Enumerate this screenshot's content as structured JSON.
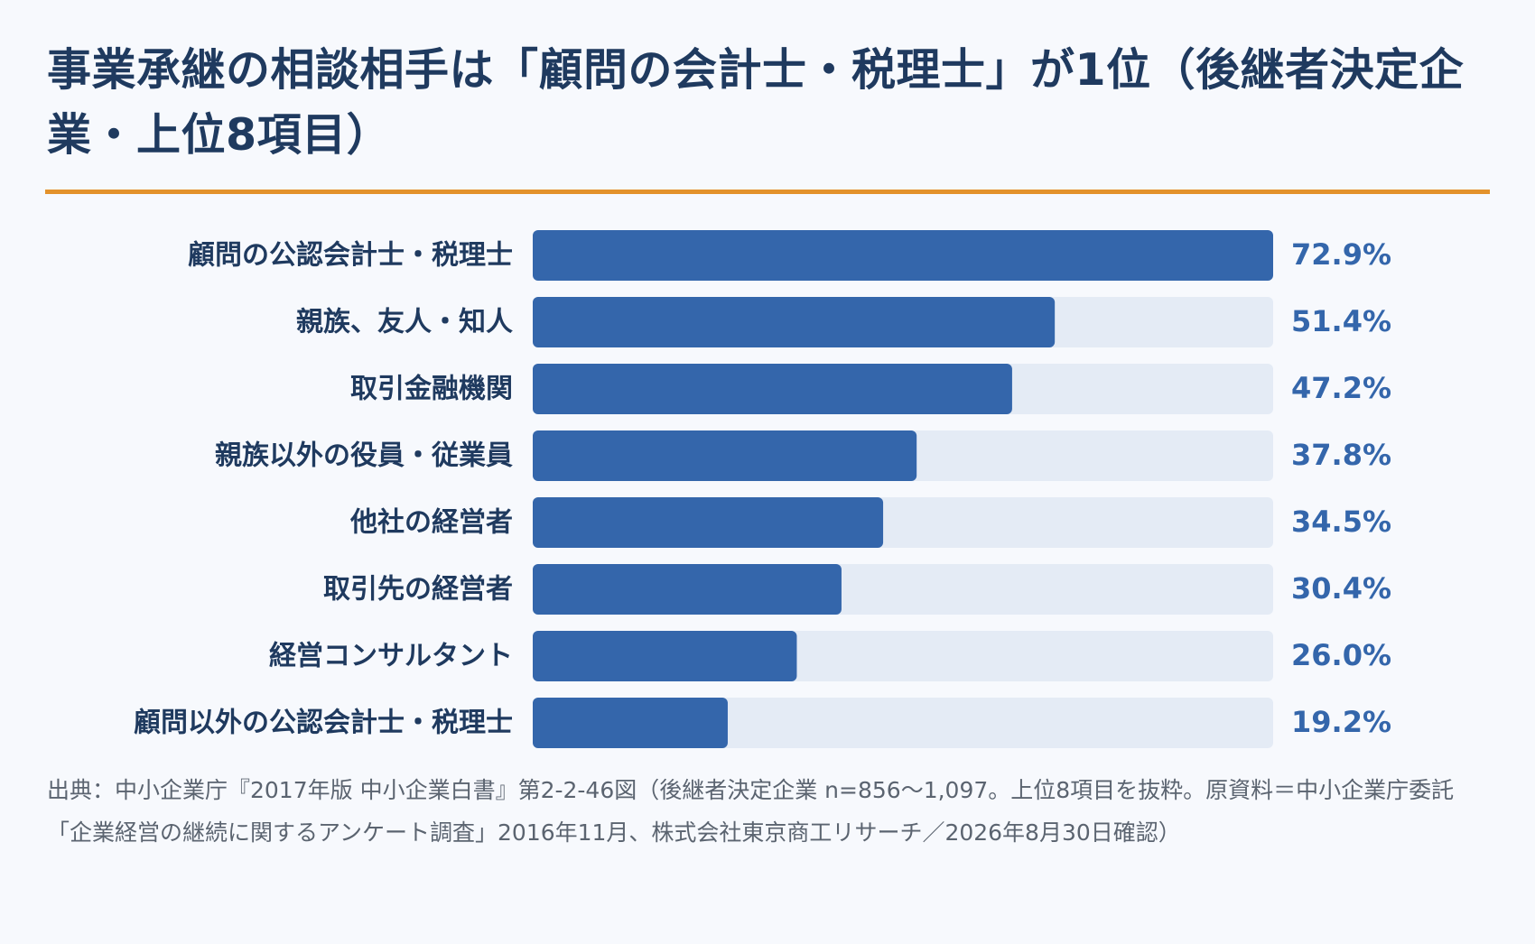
{
  "title": "事業承継の相談相手は「顧問の会計士・税理士」が1位（後継者決定企業・上位8項目）",
  "source": "出典：中小企業庁『2017年版 中小企業白書』第2-2-46図（後継者決定企業 n=856〜1,097。上位8項目を抜粋。原資料＝中小企業庁委託「企業経営の継続に関するアンケート調査」2016年11月、株式会社東京商工リサーチ／2026年8月30日確認）",
  "colors": {
    "bar": "#3466ab",
    "track": "#e4ebf5",
    "accent_rule": "#e3922c",
    "label": "#1f3a5f",
    "value": "#3466ab"
  },
  "chart_data": {
    "type": "bar",
    "orientation": "horizontal",
    "categories": [
      "顧問の公認会計士・税理士",
      "親族、友人・知人",
      "取引金融機関",
      "親族以外の役員・従業員",
      "他社の経営者",
      "取引先の経営者",
      "経営コンサルタント",
      "顧問以外の公認会計士・税理士"
    ],
    "values": [
      72.9,
      51.4,
      47.2,
      37.8,
      34.5,
      30.4,
      26.0,
      19.2
    ],
    "value_labels": [
      "72.9%",
      "51.4%",
      "47.2%",
      "37.8%",
      "34.5%",
      "30.4%",
      "26.0%",
      "19.2%"
    ],
    "xlim": [
      0,
      72.9
    ],
    "grid": false,
    "legend": "none"
  }
}
